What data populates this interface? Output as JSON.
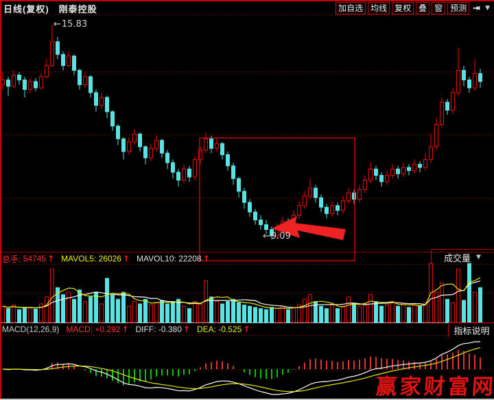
{
  "window": {
    "period_label": "日线(复权)",
    "stock_name": "刚泰控股"
  },
  "toolbar": {
    "buttons": [
      "加自选",
      "均线",
      "复权",
      "叠",
      "窗",
      "预测"
    ],
    "next_icon": "⇥",
    "dropdown_icon": "▼"
  },
  "volume_header": {
    "zongshou_label": "总手:",
    "zongshou_value": "54745",
    "mavol5_label": "MAVOL5:",
    "mavol5_value": "26026",
    "mavol10_label": "MAVOL10:",
    "mavol10_value": "22208",
    "arrow": "↑",
    "pane_button_label": "成交量",
    "pane_button_caret": "▼"
  },
  "macd_header": {
    "formula": "MACD(12,26,9)",
    "macd_label": "MACD:",
    "macd_value": "+0.292",
    "diff_label": "DIFF:",
    "diff_value": "-0.380",
    "dea_label": "DEA:",
    "dea_value": "-0.525",
    "arrow": "↑",
    "pane_button_label": "指标说明"
  },
  "annotations": {
    "high_arrow": "←",
    "high_label": "15.83",
    "low_arrow": "←",
    "low_label": "9.09",
    "watermark": "赢家财富网"
  },
  "colors": {
    "up": "#f20d0d",
    "down": "#58e3e3",
    "grid": "#b40000",
    "divider": "#8a0000",
    "mavol5": "#e8e800",
    "mavol10": "#ffffff",
    "diff_line": "#ffffff",
    "dea_line": "#e8e800",
    "hist_pos": "#e03333",
    "hist_neg": "#00c800",
    "box": "#e80000",
    "big_arrow": "#ee2222",
    "baseline": "#c8c8c8"
  },
  "chart_data": {
    "type": "candlestick",
    "title": "刚泰控股 日线(复权)",
    "panes": [
      "price",
      "volume",
      "macd"
    ],
    "legend_position": "top-left-per-pane",
    "grid": "dotted-horizontal",
    "price_axis_range": [
      8.85,
      16.05
    ],
    "volume_axis_max": 52000,
    "high_annotation_value": 15.83,
    "low_annotation_value": 9.09,
    "indicators": {
      "volume_ma": [
        5,
        10
      ],
      "macd_params": [
        12,
        26,
        9
      ]
    },
    "highlight_box_candle_range": [
      36,
      64
    ],
    "candles_ohlc": [
      [
        13.95,
        14.35,
        13.8,
        14.1
      ],
      [
        14.1,
        14.2,
        13.6,
        13.9
      ],
      [
        13.9,
        14.4,
        13.85,
        14.25
      ],
      [
        14.25,
        14.35,
        13.95,
        14.1
      ],
      [
        14.1,
        14.2,
        13.55,
        13.8
      ],
      [
        13.8,
        14.15,
        13.7,
        14.05
      ],
      [
        14.05,
        14.15,
        13.75,
        13.85
      ],
      [
        13.85,
        14.3,
        13.8,
        14.2
      ],
      [
        14.2,
        14.75,
        14.15,
        14.55
      ],
      [
        14.55,
        15.83,
        14.5,
        15.3
      ],
      [
        15.3,
        15.45,
        14.75,
        14.9
      ],
      [
        14.9,
        15.0,
        14.4,
        14.55
      ],
      [
        14.55,
        15.0,
        14.5,
        14.85
      ],
      [
        14.85,
        14.9,
        14.25,
        14.4
      ],
      [
        14.4,
        14.45,
        13.8,
        13.95
      ],
      [
        13.95,
        14.35,
        13.85,
        14.2
      ],
      [
        14.2,
        14.25,
        13.55,
        13.7
      ],
      [
        13.7,
        13.8,
        13.1,
        13.3
      ],
      [
        13.3,
        13.7,
        13.2,
        13.55
      ],
      [
        13.55,
        13.6,
        12.9,
        13.1
      ],
      [
        13.1,
        13.15,
        12.5,
        12.65
      ],
      [
        12.65,
        12.7,
        12.05,
        12.25
      ],
      [
        12.25,
        12.3,
        11.6,
        11.85
      ],
      [
        11.85,
        12.3,
        11.75,
        12.15
      ],
      [
        12.15,
        12.55,
        12.05,
        12.4
      ],
      [
        12.4,
        12.45,
        11.85,
        12.0
      ],
      [
        12.0,
        12.05,
        11.45,
        11.65
      ],
      [
        11.65,
        12.1,
        11.55,
        11.95
      ],
      [
        11.95,
        12.35,
        11.85,
        12.2
      ],
      [
        12.2,
        12.25,
        11.65,
        11.8
      ],
      [
        11.8,
        11.9,
        11.3,
        11.5
      ],
      [
        11.5,
        11.6,
        11.0,
        11.2
      ],
      [
        11.2,
        11.3,
        10.75,
        10.95
      ],
      [
        10.95,
        11.45,
        10.85,
        11.3
      ],
      [
        11.3,
        11.4,
        10.9,
        11.05
      ],
      [
        11.05,
        11.7,
        10.95,
        11.6
      ],
      [
        11.6,
        12.0,
        11.45,
        11.9
      ],
      [
        11.9,
        12.45,
        11.8,
        12.25
      ],
      [
        12.25,
        12.35,
        11.8,
        11.95
      ],
      [
        11.95,
        12.25,
        11.85,
        12.1
      ],
      [
        12.1,
        12.15,
        11.6,
        11.75
      ],
      [
        11.75,
        11.85,
        11.25,
        11.4
      ],
      [
        11.4,
        11.5,
        10.8,
        11.0
      ],
      [
        11.0,
        11.05,
        10.4,
        10.6
      ],
      [
        10.6,
        10.7,
        10.05,
        10.25
      ],
      [
        10.25,
        10.35,
        9.8,
        9.95
      ],
      [
        9.95,
        10.05,
        9.55,
        9.7
      ],
      [
        9.7,
        9.85,
        9.4,
        9.55
      ],
      [
        9.55,
        9.7,
        9.25,
        9.4
      ],
      [
        9.4,
        9.5,
        9.09,
        9.2
      ],
      [
        9.2,
        9.6,
        9.1,
        9.45
      ],
      [
        9.45,
        9.8,
        9.35,
        9.65
      ],
      [
        9.65,
        9.75,
        9.4,
        9.55
      ],
      [
        9.55,
        10.0,
        9.45,
        9.85
      ],
      [
        9.85,
        10.3,
        9.75,
        10.15
      ],
      [
        10.15,
        10.6,
        10.05,
        10.45
      ],
      [
        10.45,
        11.0,
        10.35,
        10.7
      ],
      [
        10.7,
        10.8,
        10.25,
        10.4
      ],
      [
        10.4,
        10.5,
        9.95,
        10.1
      ],
      [
        10.1,
        10.2,
        9.75,
        9.9
      ],
      [
        9.9,
        10.3,
        9.8,
        10.15
      ],
      [
        10.15,
        10.25,
        9.85,
        10.0
      ],
      [
        10.0,
        10.45,
        9.9,
        10.3
      ],
      [
        10.3,
        10.7,
        10.2,
        10.55
      ],
      [
        10.55,
        10.65,
        10.2,
        10.35
      ],
      [
        10.35,
        10.8,
        10.25,
        10.65
      ],
      [
        10.65,
        11.1,
        10.55,
        10.95
      ],
      [
        10.95,
        11.5,
        10.85,
        11.3
      ],
      [
        11.3,
        11.4,
        10.95,
        11.1
      ],
      [
        11.1,
        11.2,
        10.75,
        10.9
      ],
      [
        10.9,
        11.25,
        10.8,
        11.1
      ],
      [
        11.1,
        11.45,
        11.0,
        11.3
      ],
      [
        11.3,
        11.4,
        11.0,
        11.15
      ],
      [
        11.15,
        11.5,
        11.05,
        11.35
      ],
      [
        11.35,
        11.45,
        11.1,
        11.25
      ],
      [
        11.25,
        11.6,
        11.15,
        11.45
      ],
      [
        11.45,
        11.55,
        11.2,
        11.35
      ],
      [
        11.35,
        11.8,
        11.25,
        11.6
      ],
      [
        11.6,
        12.4,
        11.5,
        12.0
      ],
      [
        12.0,
        12.9,
        11.9,
        12.7
      ],
      [
        12.7,
        13.55,
        12.6,
        13.4
      ],
      [
        13.4,
        13.5,
        13.0,
        13.15
      ],
      [
        13.15,
        13.85,
        13.05,
        13.7
      ],
      [
        13.7,
        15.1,
        13.6,
        14.4
      ],
      [
        14.4,
        14.55,
        13.9,
        14.1
      ],
      [
        14.1,
        14.2,
        13.7,
        13.85
      ],
      [
        13.85,
        14.75,
        13.75,
        14.3
      ],
      [
        14.3,
        14.45,
        13.85,
        14.05
      ]
    ],
    "volume": [
      14000,
      12000,
      15000,
      11000,
      13000,
      12500,
      11500,
      16000,
      22000,
      46000,
      30000,
      24000,
      26000,
      20000,
      28000,
      18000,
      22000,
      26000,
      16000,
      38000,
      24000,
      20000,
      26000,
      14000,
      18000,
      16000,
      20000,
      15000,
      17000,
      19000,
      16000,
      18000,
      20000,
      14000,
      12000,
      18000,
      16000,
      36000,
      22000,
      18000,
      16000,
      18000,
      20000,
      17000,
      15000,
      14000,
      13000,
      12000,
      11000,
      13000,
      12000,
      14000,
      11000,
      13000,
      15000,
      20000,
      24000,
      18000,
      14000,
      12000,
      15000,
      12000,
      14000,
      22000,
      16000,
      14000,
      16000,
      24000,
      18000,
      14000,
      15000,
      18000,
      14000,
      16000,
      13000,
      15000,
      14000,
      17000,
      68000,
      26000,
      34000,
      20000,
      17000,
      46000,
      19000,
      72000,
      26000,
      30000
    ]
  }
}
